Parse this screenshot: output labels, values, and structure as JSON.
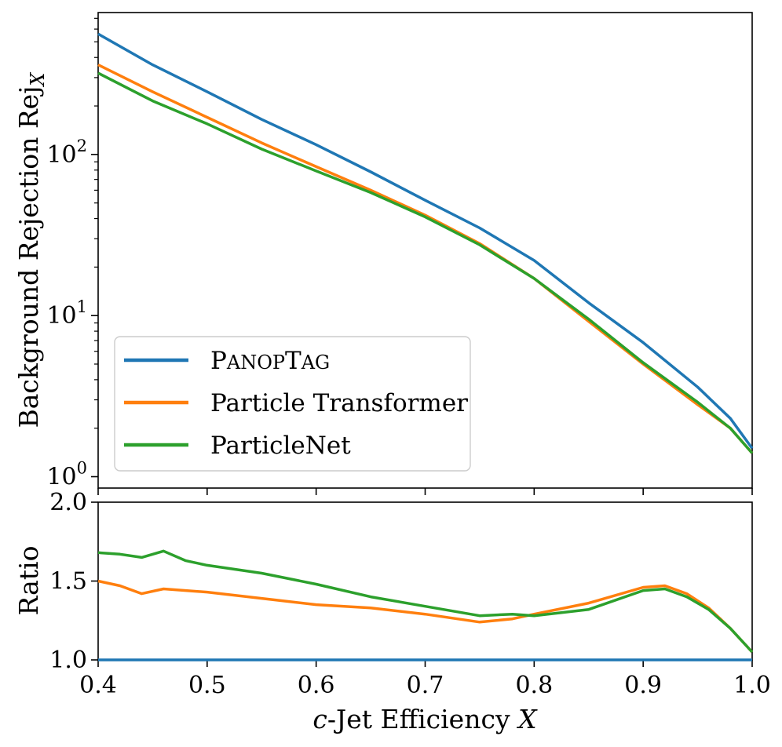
{
  "chart_data": [
    {
      "type": "line",
      "name": "rejection",
      "ylabel": "Background Rejection Rej",
      "ylabel_sub": "X",
      "yscale": "log",
      "ylim": [
        0.85,
        760
      ],
      "xlim": [
        0.4,
        1.0
      ],
      "yticks": [
        {
          "value": 1,
          "base": "10",
          "exp": "0"
        },
        {
          "value": 10,
          "base": "10",
          "exp": "1"
        },
        {
          "value": 100,
          "base": "10",
          "exp": "2"
        }
      ],
      "legend_position": "lower-left",
      "series": [
        {
          "name": "PanopTag",
          "label_lead1": "P",
          "label_rest1": "ANOP",
          "label_lead2": "T",
          "label_rest2": "AG",
          "color": "#1f77b4",
          "x": [
            0.4,
            0.45,
            0.5,
            0.55,
            0.6,
            0.65,
            0.7,
            0.75,
            0.8,
            0.85,
            0.9,
            0.95,
            0.98,
            1.0
          ],
          "y": [
            560,
            360,
            245,
            165,
            115,
            78,
            52,
            35,
            22,
            12,
            6.8,
            3.6,
            2.3,
            1.5
          ]
        },
        {
          "name": "Particle Transformer",
          "label": "Particle Transformer",
          "color": "#ff7f0e",
          "x": [
            0.4,
            0.45,
            0.5,
            0.55,
            0.6,
            0.65,
            0.7,
            0.75,
            0.8,
            0.85,
            0.9,
            0.95,
            0.98,
            1.0
          ],
          "y": [
            360,
            245,
            170,
            118,
            84,
            60,
            42,
            28,
            17,
            9.2,
            5.0,
            2.8,
            2.0,
            1.4
          ]
        },
        {
          "name": "ParticleNet",
          "label": "ParticleNet",
          "color": "#2ca02c",
          "x": [
            0.4,
            0.45,
            0.5,
            0.55,
            0.6,
            0.65,
            0.7,
            0.75,
            0.8,
            0.85,
            0.9,
            0.95,
            0.98,
            1.0
          ],
          "y": [
            320,
            215,
            155,
            108,
            79,
            58,
            41,
            27.5,
            17,
            9.5,
            5.1,
            2.9,
            2.0,
            1.4
          ]
        }
      ]
    },
    {
      "type": "line",
      "name": "ratio",
      "ylabel": "Ratio",
      "xlabel_prefix": "c",
      "xlabel_mid": "-Jet Efficiency ",
      "xlabel_var": "X",
      "ylim": [
        1.0,
        2.0
      ],
      "xlim": [
        0.4,
        1.0
      ],
      "yticks": [
        {
          "value": 1.0,
          "label": "1.0"
        },
        {
          "value": 1.5,
          "label": "1.5"
        },
        {
          "value": 2.0,
          "label": "2.0"
        }
      ],
      "xticks": [
        {
          "value": 0.4,
          "label": "0.4"
        },
        {
          "value": 0.5,
          "label": "0.5"
        },
        {
          "value": 0.6,
          "label": "0.6"
        },
        {
          "value": 0.7,
          "label": "0.7"
        },
        {
          "value": 0.8,
          "label": "0.8"
        },
        {
          "value": 0.9,
          "label": "0.9"
        },
        {
          "value": 1.0,
          "label": "1.0"
        }
      ],
      "series": [
        {
          "name": "PanopTag / PanopTag",
          "color": "#1f77b4",
          "x": [
            0.4,
            1.0
          ],
          "y": [
            1.0,
            1.0
          ]
        },
        {
          "name": "PanopTag / Particle Transformer",
          "color": "#ff7f0e",
          "x": [
            0.4,
            0.42,
            0.44,
            0.46,
            0.5,
            0.55,
            0.6,
            0.65,
            0.7,
            0.75,
            0.78,
            0.8,
            0.85,
            0.9,
            0.92,
            0.94,
            0.96,
            0.98,
            1.0
          ],
          "y": [
            1.5,
            1.47,
            1.42,
            1.45,
            1.43,
            1.39,
            1.35,
            1.33,
            1.29,
            1.24,
            1.26,
            1.29,
            1.36,
            1.46,
            1.47,
            1.42,
            1.33,
            1.2,
            1.05
          ]
        },
        {
          "name": "PanopTag / ParticleNet",
          "color": "#2ca02c",
          "x": [
            0.4,
            0.42,
            0.44,
            0.46,
            0.48,
            0.5,
            0.55,
            0.6,
            0.65,
            0.7,
            0.75,
            0.78,
            0.8,
            0.85,
            0.9,
            0.92,
            0.94,
            0.96,
            0.98,
            1.0
          ],
          "y": [
            1.68,
            1.67,
            1.65,
            1.69,
            1.63,
            1.6,
            1.55,
            1.48,
            1.4,
            1.34,
            1.28,
            1.29,
            1.28,
            1.32,
            1.44,
            1.45,
            1.4,
            1.32,
            1.2,
            1.05
          ]
        }
      ]
    }
  ]
}
